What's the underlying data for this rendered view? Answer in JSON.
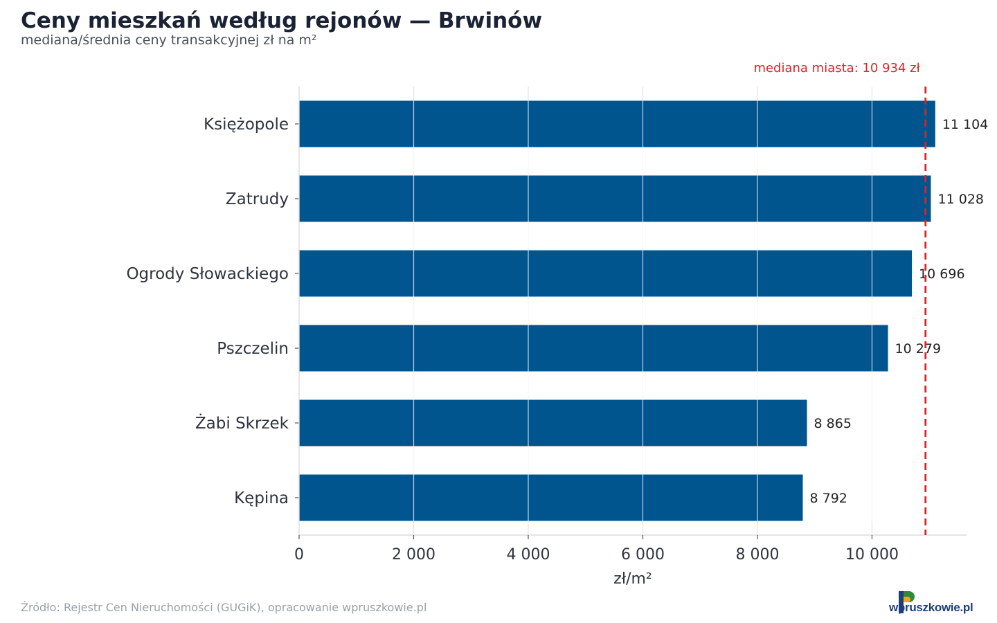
{
  "chart_data": {
    "type": "bar",
    "orientation": "horizontal",
    "title": "Ceny mieszkań według rejonów — Brwinów",
    "subtitle": "mediana/średnia ceny transakcyjnej zł na m²",
    "xlabel": "zł/m²",
    "categories": [
      "Księżopole",
      "Zatrudy",
      "Ogrody Słowackiego",
      "Pszczelin",
      "Żabi Skrzek",
      "Kępina"
    ],
    "values": [
      11104,
      11028,
      10696,
      10279,
      8865,
      8792
    ],
    "value_labels": [
      "11 104",
      "11 028",
      "10 696",
      "10 279",
      "8 865",
      "8 792"
    ],
    "xlim": [
      0,
      11650
    ],
    "x_ticks": [
      0,
      2000,
      4000,
      6000,
      8000,
      10000
    ],
    "x_tick_labels": [
      "0",
      "2 000",
      "4 000",
      "6 000",
      "8 000",
      "10 000"
    ],
    "grid": "vertical",
    "bar_color": "#00558f",
    "reference_line": {
      "value": 10934,
      "label": "mediana miasta: 10 934 zł",
      "color": "#d62728",
      "style": "dashed"
    }
  },
  "footer": {
    "source": "Źródło: Rejestr Cen Nieruchomości (GUGiK), opracowanie wpruszkowie.pl",
    "logo_text": "wpruszkowie.pl"
  }
}
